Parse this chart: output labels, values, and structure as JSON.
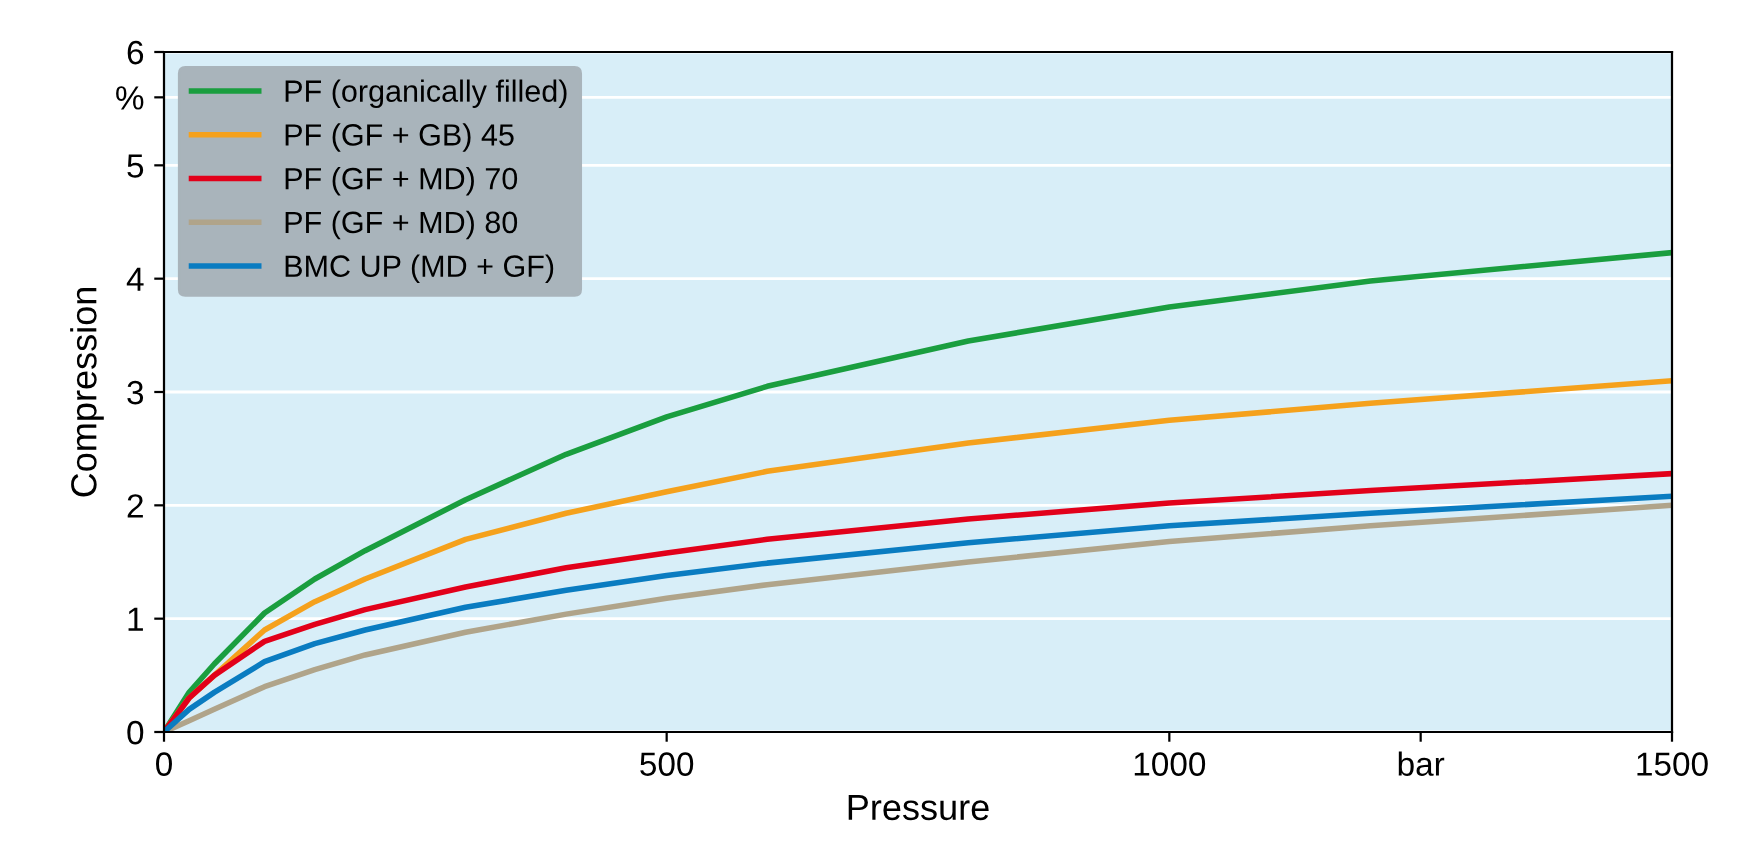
{
  "chart_data": {
    "type": "line",
    "xlabel": "Pressure",
    "ylabel": "Compression",
    "x": [
      0,
      25,
      50,
      100,
      150,
      200,
      300,
      400,
      500,
      600,
      800,
      1000,
      1200,
      1500
    ],
    "series": [
      {
        "name": "PF (organically filled)",
        "color": "#1a9e3f",
        "values": [
          0,
          0.35,
          0.6,
          1.05,
          1.35,
          1.6,
          2.05,
          2.45,
          2.78,
          3.05,
          3.45,
          3.75,
          3.98,
          4.23
        ]
      },
      {
        "name": "PF (GF + GB) 45",
        "color": "#f5a11c",
        "values": [
          0,
          0.3,
          0.5,
          0.9,
          1.15,
          1.35,
          1.7,
          1.93,
          2.12,
          2.3,
          2.55,
          2.75,
          2.9,
          3.1
        ]
      },
      {
        "name": "PF (GF + MD) 70",
        "color": "#e2001a",
        "values": [
          0,
          0.3,
          0.5,
          0.8,
          0.95,
          1.08,
          1.28,
          1.45,
          1.58,
          1.7,
          1.88,
          2.02,
          2.13,
          2.28
        ]
      },
      {
        "name": "PF (GF + MD) 80",
        "color": "#b0a48a",
        "values": [
          0,
          0.1,
          0.2,
          0.4,
          0.55,
          0.68,
          0.88,
          1.04,
          1.18,
          1.3,
          1.5,
          1.68,
          1.82,
          2.0
        ]
      },
      {
        "name": "BMC UP (MD + GF)",
        "color": "#0a7cc1",
        "values": [
          0,
          0.2,
          0.35,
          0.62,
          0.78,
          0.9,
          1.1,
          1.25,
          1.38,
          1.49,
          1.67,
          1.82,
          1.93,
          2.08
        ]
      }
    ],
    "xlim": [
      0,
      1500
    ],
    "xticks": [
      0,
      500,
      1000,
      {
        "value": 1250,
        "label": "bar"
      },
      1500
    ],
    "ylim": [
      0,
      6
    ],
    "yticks": [
      0,
      1,
      2,
      3,
      4,
      5,
      {
        "value": 5.6,
        "label": "%"
      },
      6
    ],
    "grid": "y",
    "legend": "top left",
    "marker": "none",
    "line_style": "solid"
  }
}
